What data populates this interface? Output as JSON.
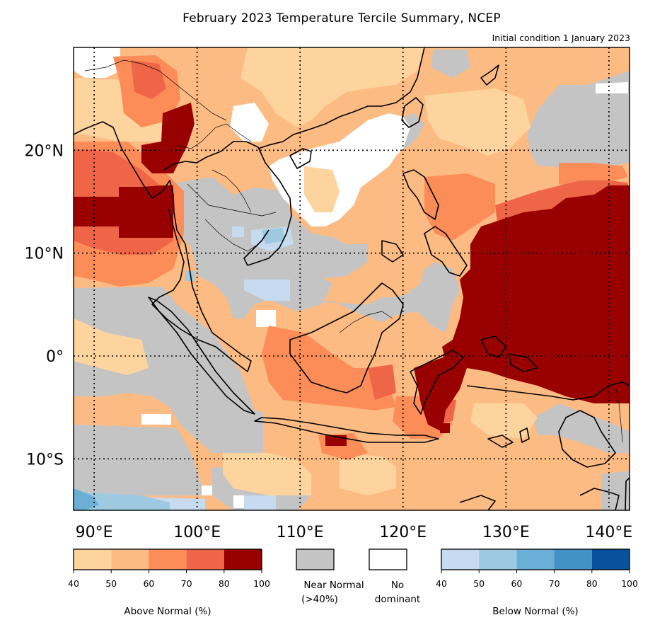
{
  "title": "February 2023 Temperature Tercile Summary, NCEP",
  "subtitle": "Initial condition 1 January 2023",
  "map": {
    "lon_range": [
      88,
      142
    ],
    "lat_range": [
      -15,
      30
    ],
    "lon_ticks": [
      {
        "value": 90,
        "label": "90°E"
      },
      {
        "value": 100,
        "label": "100°E"
      },
      {
        "value": 110,
        "label": "110°E"
      },
      {
        "value": 120,
        "label": "120°E"
      },
      {
        "value": 130,
        "label": "130°E"
      },
      {
        "value": 140,
        "label": "140°E"
      }
    ],
    "lat_ticks": [
      {
        "value": 20,
        "label": "20°N"
      },
      {
        "value": 10,
        "label": "10°N"
      },
      {
        "value": 0,
        "label": "0°"
      },
      {
        "value": -10,
        "label": "10°S"
      }
    ],
    "gridlines": "dotted"
  },
  "legend": {
    "above_normal": {
      "label": "Above Normal (%)",
      "ticks": [
        "40",
        "50",
        "60",
        "70",
        "80",
        "100"
      ],
      "colors": [
        "#fdd49e",
        "#fdbb84",
        "#fc8d59",
        "#ef6548",
        "#990000"
      ]
    },
    "near_normal": {
      "label_line1": "Near Normal",
      "label_line2": "(>40%)",
      "color": "#c4c4c4"
    },
    "no_dominant": {
      "label_line1": "No",
      "label_line2": "dominant",
      "color": "#ffffff"
    },
    "below_normal": {
      "label": "Below Normal (%)",
      "ticks": [
        "40",
        "50",
        "60",
        "70",
        "80",
        "100"
      ],
      "colors": [
        "#c6dbef",
        "#9ecae1",
        "#6baed6",
        "#4292c6",
        "#08519c"
      ]
    }
  },
  "colors": {
    "above_40_50": "#fdd49e",
    "above_50_60": "#fdbb84",
    "above_60_70": "#fc8d59",
    "above_70_80": "#ef6548",
    "above_80_100": "#990000",
    "near_normal": "#c4c4c4",
    "no_dominant": "#ffffff",
    "below_40_50": "#c6dbef",
    "below_50_60": "#9ecae1",
    "below_60_70": "#6baed6"
  }
}
